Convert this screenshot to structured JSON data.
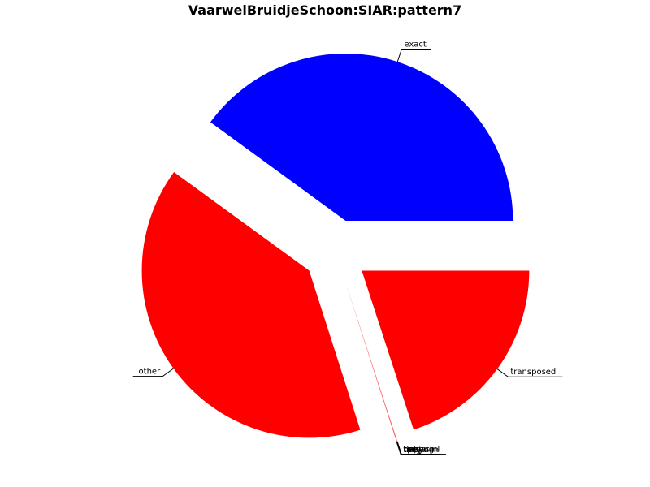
{
  "chart_data": {
    "type": "pie",
    "title": "VaarwelBruidjeSchoon:SIAR:pattern7",
    "slices": [
      {
        "label": "exact",
        "value": 33.33,
        "color": "#0000ff"
      },
      {
        "label": "other",
        "value": 33.33,
        "color": "#ff0000"
      },
      {
        "label": "tinaj",
        "value": 0.01,
        "color": "#ff0000"
      },
      {
        "label": "tiaoyuan",
        "value": 0.01,
        "color": "#ff0000"
      },
      {
        "label": "moyu",
        "value": 0.01,
        "color": "#ff0000"
      },
      {
        "label": "tiejiu",
        "value": 0.01,
        "color": "#ff0000"
      },
      {
        "label": "tisheng",
        "value": 0.01,
        "color": "#ff0000"
      },
      {
        "label": "tpreasml",
        "value": 0.01,
        "color": "#ff0000"
      },
      {
        "label": "transposed",
        "value": 16.67,
        "color": "#ff0000"
      }
    ],
    "legend": "none"
  }
}
